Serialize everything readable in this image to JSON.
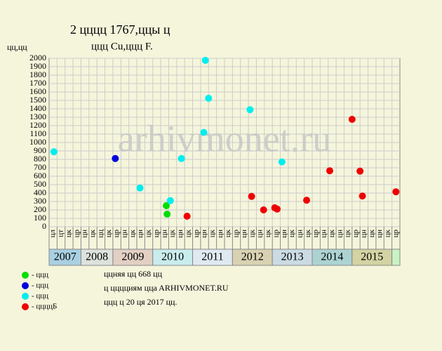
{
  "chart_data": {
    "type": "scatter",
    "title": "2 цццц 1767,ццы ц",
    "subtitle": "ццц Cu,ццц F.",
    "y_label": "цц,цц",
    "watermark": "arhivmonet.ru",
    "categories": [
      "цл",
      "цт",
      "цк",
      "цр",
      "цн",
      "цк",
      "цц",
      "цк",
      "цр",
      "цн",
      "цк",
      "цн",
      "цк",
      "цр",
      "цн",
      "цк",
      "цн",
      "цк",
      "цр",
      "цн",
      "цк",
      "цн",
      "цк",
      "цр",
      "цн",
      "цк",
      "цн",
      "цк",
      "цр",
      "цн",
      "цк",
      "цн",
      "цк",
      "цр",
      "цн",
      "цк",
      "цн",
      "цк",
      "цр",
      "цн",
      "цк",
      "цн",
      "цк",
      "цр"
    ],
    "year_groups": [
      {
        "label": "2007",
        "span": 4,
        "color": "#a9d0e2"
      },
      {
        "label": "2008",
        "span": 4,
        "color": "#dde3dc"
      },
      {
        "label": "2009",
        "span": 5,
        "color": "#e2d0c4"
      },
      {
        "label": "2010",
        "span": 5,
        "color": "#c9ecec"
      },
      {
        "label": "2011",
        "span": 5,
        "color": "#dfe9f1"
      },
      {
        "label": "2012",
        "span": 5,
        "color": "#d9d2b2"
      },
      {
        "label": "2013",
        "span": 5,
        "color": "#cbdbe3"
      },
      {
        "label": "2014",
        "span": 5,
        "color": "#acd3d2"
      },
      {
        "label": "2015",
        "span": 5,
        "color": "#d3d3a3"
      },
      {
        "label": null,
        "span": 1,
        "color": "#c9f3c3"
      }
    ],
    "xlim": [
      0,
      44
    ],
    "ylim": [
      0,
      2000
    ],
    "yticks": [
      0,
      100,
      200,
      300,
      400,
      500,
      600,
      700,
      800,
      900,
      1000,
      1100,
      1200,
      1300,
      1400,
      1500,
      1600,
      1700,
      1800,
      1900,
      2000
    ],
    "grid": true,
    "series": [
      {
        "name": "- ццц",
        "color": "#00dd00",
        "x": [
          14.7,
          14.8
        ],
        "values": [
          250,
          150
        ]
      },
      {
        "name": "- ццц",
        "color": "#0000dd",
        "x": [
          8.3
        ],
        "values": [
          810
        ]
      },
      {
        "name": "- ццц",
        "color": "#00eeee",
        "x": [
          0.6,
          11.4,
          15.2,
          16.6,
          19.4,
          19.6,
          20.0,
          25.2,
          29.2
        ],
        "values": [
          890,
          460,
          310,
          810,
          1120,
          1975,
          1525,
          1390,
          770
        ]
      },
      {
        "name": "- ццццБ",
        "color": "#ee0000",
        "x": [
          17.3,
          25.4,
          26.9,
          28.3,
          28.6,
          32.3,
          35.2,
          38.0,
          39.0,
          39.3,
          43.5
        ],
        "values": [
          125,
          360,
          200,
          225,
          210,
          315,
          665,
          1275,
          660,
          365,
          415
        ]
      }
    ],
    "annotations": [
      "ццняя цц 668 цц",
      "ц цццциям ццa ARHIVMONET.RU",
      "ццц ц 20 ця 2017 цц."
    ]
  }
}
